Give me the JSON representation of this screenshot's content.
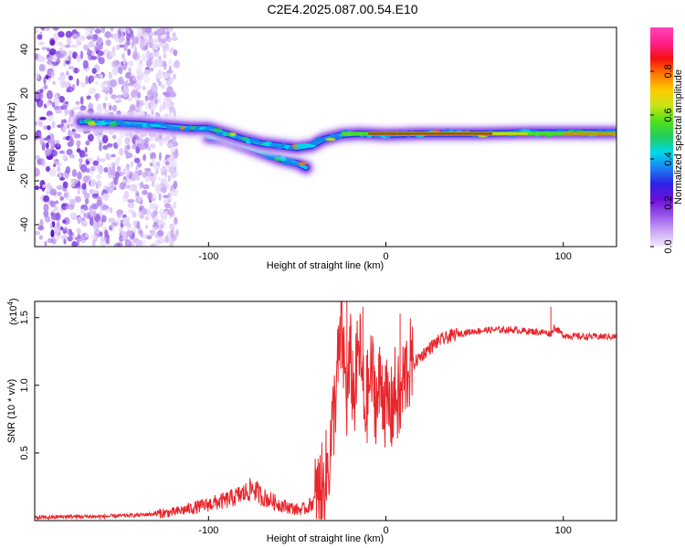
{
  "figure_title": "C2E4.2025.087.00.54.E10",
  "chart_data": [
    {
      "type": "heatmap",
      "title": "",
      "xlabel": "Height of straight line (km)",
      "ylabel": "Frequency (Hz)",
      "xlim": [
        -198,
        130
      ],
      "ylim": [
        -50,
        50
      ],
      "xticks": [
        -100,
        0,
        100
      ],
      "yticks": [
        -40,
        -20,
        0,
        20,
        40
      ],
      "grid": false,
      "colorbar": {
        "label": "Normalized spectral amplitude",
        "range": [
          0,
          1
        ],
        "ticks": [
          "0.0",
          "0.2",
          "0.4",
          "0.6",
          "0.8"
        ],
        "colormap": [
          "#f4ecff",
          "#c9a6f5",
          "#9a55e8",
          "#6a0fd8",
          "#2f22e6",
          "#1a7ff2",
          "#00d9ea",
          "#1fcd5e",
          "#4fe01a",
          "#c7e316",
          "#ffcc00",
          "#ff7a00",
          "#f51010",
          "#ff1f8e",
          "#ff44b8"
        ]
      },
      "features": {
        "noise_region_x": [
          -198,
          -128
        ],
        "main_trace": [
          {
            "x": -172,
            "y": 7
          },
          {
            "x": -155,
            "y": 6.5
          },
          {
            "x": -140,
            "y": 6
          },
          {
            "x": -125,
            "y": 5
          },
          {
            "x": -110,
            "y": 4
          },
          {
            "x": -100,
            "y": 4
          },
          {
            "x": -90,
            "y": 1.5
          },
          {
            "x": -80,
            "y": -1
          },
          {
            "x": -70,
            "y": -3
          },
          {
            "x": -60,
            "y": -4
          },
          {
            "x": -50,
            "y": -5
          },
          {
            "x": -42,
            "y": -4
          },
          {
            "x": -35,
            "y": -1
          },
          {
            "x": -25,
            "y": 1
          },
          {
            "x": -15,
            "y": 1.5
          },
          {
            "x": 0,
            "y": 1
          },
          {
            "x": 20,
            "y": 1.5
          },
          {
            "x": 50,
            "y": 1.5
          },
          {
            "x": 80,
            "y": 2
          },
          {
            "x": 100,
            "y": 2
          },
          {
            "x": 130,
            "y": 2
          }
        ],
        "lower_branch": [
          {
            "x": -100,
            "y": 0
          },
          {
            "x": -90,
            "y": -1
          },
          {
            "x": -80,
            "y": -4
          },
          {
            "x": -70,
            "y": -7
          },
          {
            "x": -60,
            "y": -10
          },
          {
            "x": -50,
            "y": -12
          },
          {
            "x": -45,
            "y": -14
          }
        ]
      }
    },
    {
      "type": "line",
      "title": "",
      "xlabel": "Height of straight line (km)",
      "ylabel": "SNR (10 * v/v)",
      "multiplier": "(x10",
      "multiplier_exp": "4",
      "multiplier_close": ")",
      "xlim": [
        -198,
        130
      ],
      "ylim": [
        0,
        1.62
      ],
      "xticks": [
        -100,
        0,
        100
      ],
      "yticks": [
        "0.5",
        "1.0",
        "1.5"
      ],
      "grid": false,
      "line_color": "#e8262c",
      "series": [
        {
          "x": [
            -198,
            -180,
            -160,
            -140,
            -130,
            -120,
            -110,
            -100,
            -90,
            -80,
            -75,
            -70,
            -60,
            -55,
            -50,
            -45,
            -40,
            -35,
            -32,
            -30,
            -28,
            -25,
            -22,
            -20,
            -18,
            -15,
            -12,
            -10,
            -8,
            -5,
            -3,
            0,
            3,
            5,
            8,
            10,
            13,
            15,
            20,
            25,
            30,
            40,
            50,
            60,
            70,
            80,
            90,
            93,
            95,
            100,
            110,
            120,
            130
          ],
          "y": [
            0.02,
            0.03,
            0.03,
            0.04,
            0.05,
            0.06,
            0.09,
            0.12,
            0.15,
            0.2,
            0.24,
            0.18,
            0.12,
            0.1,
            0.08,
            0.09,
            0.15,
            0.25,
            0.45,
            0.7,
            1.0,
            1.4,
            0.9,
            1.2,
            0.9,
            1.3,
            0.8,
            0.95,
            1.1,
            0.85,
            1.05,
            0.85,
            0.8,
            0.95,
            0.85,
            1.05,
            1.15,
            1.15,
            1.22,
            1.28,
            1.33,
            1.38,
            1.4,
            1.41,
            1.41,
            1.4,
            1.39,
            1.38,
            1.43,
            1.37,
            1.36,
            1.36,
            1.36
          ]
        }
      ],
      "spikes": [
        {
          "x": -22,
          "y": 1.62
        },
        {
          "x": -13,
          "y": 1.58
        },
        {
          "x": 8,
          "y": 1.53
        },
        {
          "x": 93,
          "y": 1.58
        }
      ]
    }
  ]
}
